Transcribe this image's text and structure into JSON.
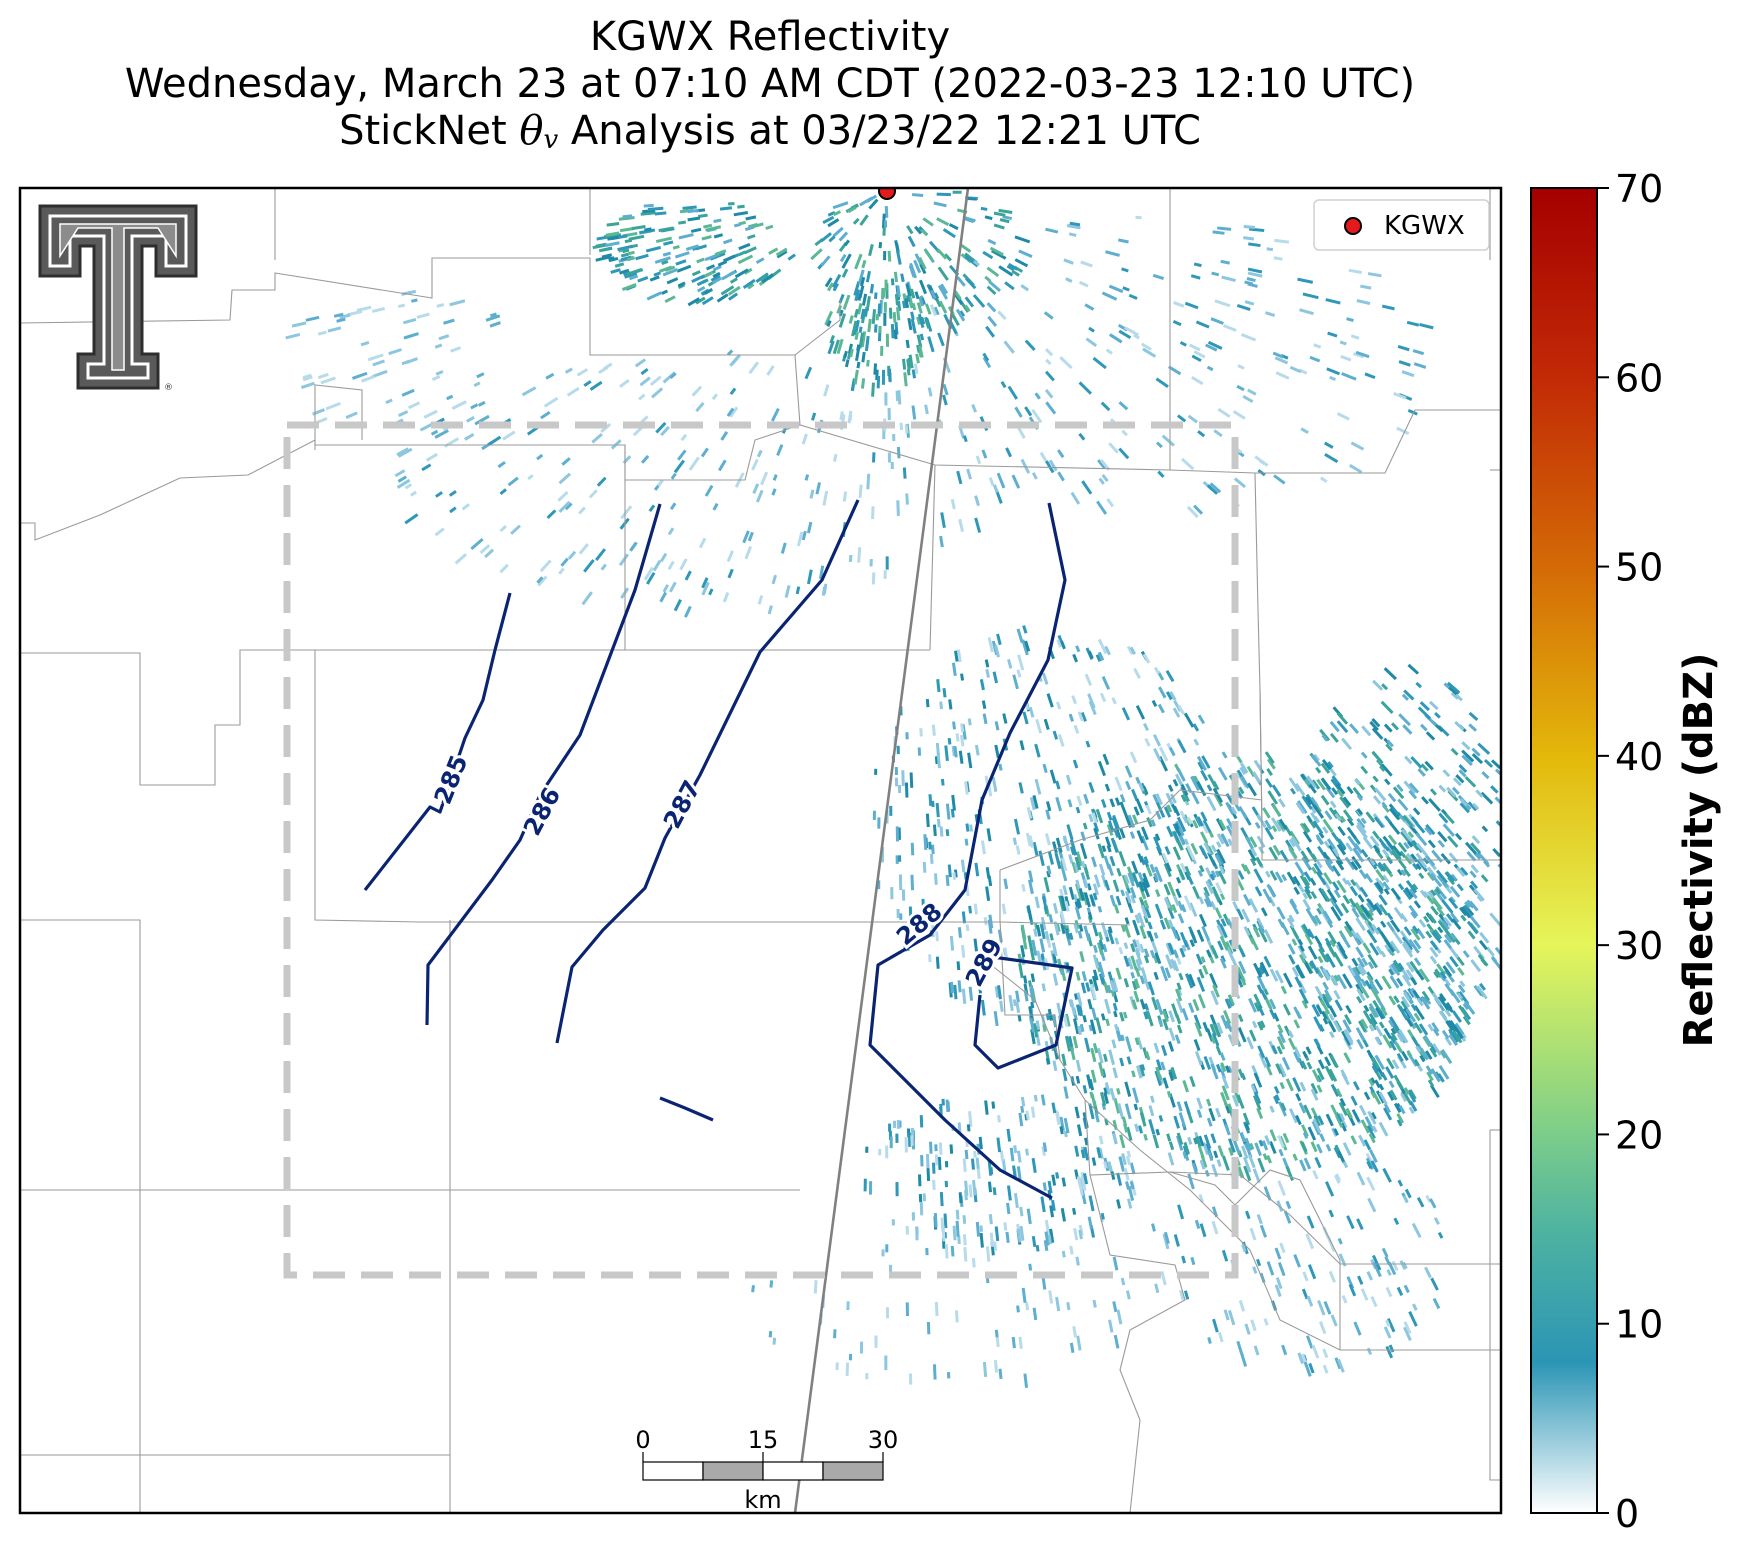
{
  "title": {
    "line1": "KGWX Reflectivity",
    "line2": "Wednesday, March 23 at 07:10 AM CDT (2022-03-23 12:10 UTC)",
    "line3_prefix": "StickNet ",
    "line3_symbol": "θ",
    "line3_subscript": "v",
    "line3_suffix": " Analysis at 03/23/22 12:21 UTC"
  },
  "legend": {
    "label": "KGWX",
    "marker_color": "#e41a1c"
  },
  "radar_site": {
    "name": "KGWX",
    "color": "#e41a1c"
  },
  "colorbar": {
    "label": "Reflectivity (dBZ)",
    "ticks": [
      "0",
      "10",
      "20",
      "30",
      "40",
      "50",
      "60",
      "70"
    ],
    "min": 0,
    "max": 70,
    "stops": [
      {
        "value": 0,
        "color": "#ffffff"
      },
      {
        "value": 8,
        "color": "#2b95b5"
      },
      {
        "value": 15,
        "color": "#4fb3a0"
      },
      {
        "value": 20,
        "color": "#7ccd8a"
      },
      {
        "value": 30,
        "color": "#e5f55a"
      },
      {
        "value": 40,
        "color": "#e3b80b"
      },
      {
        "value": 50,
        "color": "#d46a06"
      },
      {
        "value": 60,
        "color": "#c22a06"
      },
      {
        "value": 70,
        "color": "#a50000"
      }
    ]
  },
  "contours": {
    "color": "#0a2472",
    "labels": [
      "285",
      "286",
      "287",
      "288",
      "289"
    ]
  },
  "scale_bar": {
    "ticks": [
      "0",
      "15",
      "30"
    ],
    "unit": "km"
  },
  "analysis_domain": {
    "style": "dashed",
    "color": "#c8c8c8"
  },
  "logo": {
    "name": "texas-tech-double-t",
    "mark": "®"
  },
  "echo_colors": [
    "#b7dbea",
    "#8cc6df",
    "#5daecf",
    "#2f97b8",
    "#1f8aa6",
    "#3aa39a",
    "#5bb894"
  ]
}
